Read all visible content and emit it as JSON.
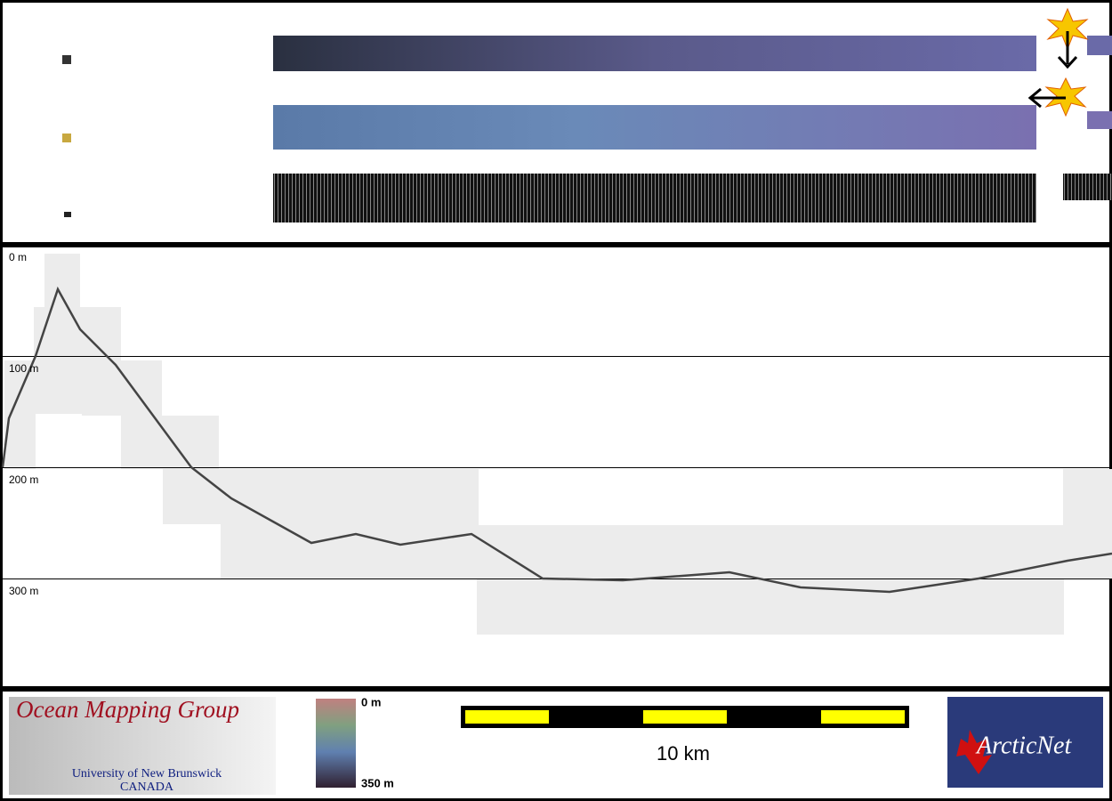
{
  "depth_profile": {
    "depth_labels": [
      "0 m",
      "100 m",
      "200 m",
      "300 m"
    ]
  },
  "footer": {
    "logo": {
      "title": "Ocean Mapping Group",
      "university": "University of New Brunswick",
      "country": "CANADA"
    },
    "colorbar": {
      "top_label": "0 m",
      "bottom_label": "350 m"
    },
    "scale_bar": {
      "label": "10 km"
    },
    "partner_logo": {
      "label": "ArcticNet"
    }
  }
}
